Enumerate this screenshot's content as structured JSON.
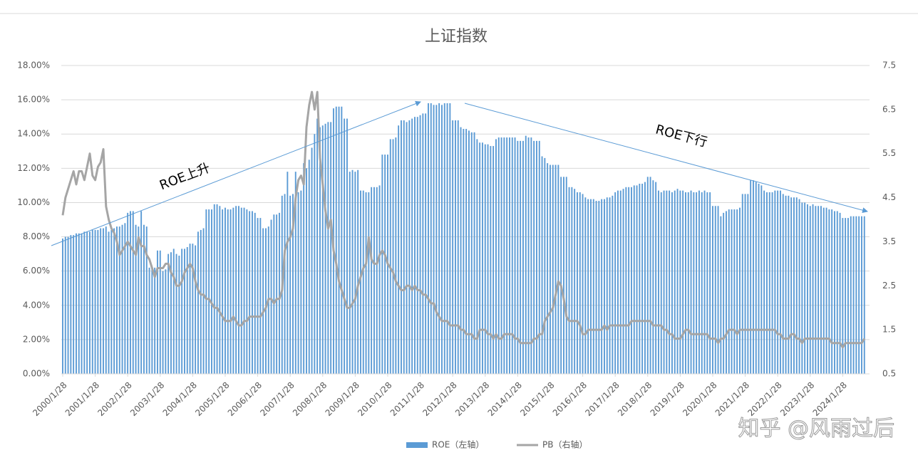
{
  "chart_data": {
    "type": "bar",
    "title": "上证指数",
    "categories": [
      "2000/1/28",
      null,
      null,
      null,
      null,
      null,
      null,
      null,
      null,
      null,
      null,
      null,
      "2001/1/28",
      null,
      null,
      null,
      null,
      null,
      null,
      null,
      null,
      null,
      null,
      null,
      "2002/1/28",
      null,
      null,
      null,
      null,
      null,
      null,
      null,
      null,
      null,
      null,
      null,
      "2003/1/28",
      null,
      null,
      null,
      null,
      null,
      null,
      null,
      null,
      null,
      null,
      null,
      "2004/1/28",
      null,
      null,
      null,
      null,
      null,
      null,
      null,
      null,
      null,
      null,
      null,
      "2005/1/28",
      null,
      null,
      null,
      null,
      null,
      null,
      null,
      null,
      null,
      null,
      null,
      "2006/1/28",
      null,
      null,
      null,
      null,
      null,
      null,
      null,
      null,
      null,
      null,
      null,
      "2007/1/28",
      null,
      null,
      null,
      null,
      null,
      null,
      null,
      null,
      null,
      null,
      null,
      "2008/1/28",
      null,
      null,
      null,
      null,
      null,
      null,
      null,
      null,
      null,
      null,
      null,
      "2009/1/28",
      null,
      null,
      null,
      null,
      null,
      null,
      null,
      null,
      null,
      null,
      null,
      "2010/1/28",
      null,
      null,
      null,
      null,
      null,
      null,
      null,
      null,
      null,
      null,
      null,
      "2011/1/28",
      null,
      null,
      null,
      null,
      null,
      null,
      null,
      null,
      null,
      null,
      null,
      "2012/1/28",
      null,
      null,
      null,
      null,
      null,
      null,
      null,
      null,
      null,
      null,
      null,
      "2013/1/28",
      null,
      null,
      null,
      null,
      null,
      null,
      null,
      null,
      null,
      null,
      null,
      "2014/1/28",
      null,
      null,
      null,
      null,
      null,
      null,
      null,
      null,
      null,
      null,
      null,
      "2015/1/28",
      null,
      null,
      null,
      null,
      null,
      null,
      null,
      null,
      null,
      null,
      null,
      "2016/1/28",
      null,
      null,
      null,
      null,
      null,
      null,
      null,
      null,
      null,
      null,
      null,
      "2017/1/28",
      null,
      null,
      null,
      null,
      null,
      null,
      null,
      null,
      null,
      null,
      null,
      "2018/1/28",
      null,
      null,
      null,
      null,
      null,
      null,
      null,
      null,
      null,
      null,
      null,
      "2019/1/28",
      null,
      null,
      null,
      null,
      null,
      null,
      null,
      null,
      null,
      null,
      null,
      "2020/1/28",
      null,
      null,
      null,
      null,
      null,
      null,
      null,
      null,
      null,
      null,
      null,
      "2021/1/28",
      null,
      null,
      null,
      null,
      null,
      null,
      null,
      null,
      null,
      null,
      null,
      "2022/1/28",
      null,
      null,
      null,
      null,
      null,
      null,
      null,
      null,
      null,
      null,
      null,
      "2023/1/28",
      null,
      null,
      null,
      null,
      null,
      null,
      null,
      null,
      null,
      null,
      null,
      "2024/1/28",
      null,
      null,
      null,
      null,
      null,
      null,
      null,
      null
    ],
    "series": [
      {
        "name": "ROE（左轴）",
        "color": "#5b9bd5",
        "type": "bar",
        "values": [
          7.9,
          8.0,
          8.0,
          8.1,
          8.1,
          8.2,
          8.2,
          8.2,
          8.3,
          8.3,
          8.3,
          8.4,
          8.4,
          8.4,
          8.5,
          8.5,
          8.6,
          8.3,
          8.4,
          8.5,
          8.6,
          8.6,
          8.7,
          8.8,
          9.4,
          9.5,
          9.5,
          8.7,
          8.6,
          9.5,
          8.7,
          8.6,
          6.2,
          6.2,
          6.2,
          7.2,
          7.2,
          6.0,
          6.1,
          7.0,
          7.1,
          7.3,
          7.0,
          6.9,
          7.3,
          7.3,
          7.4,
          7.6,
          7.6,
          7.5,
          8.3,
          8.4,
          8.5,
          9.6,
          9.6,
          9.6,
          9.9,
          9.9,
          9.8,
          9.6,
          9.7,
          9.6,
          9.6,
          9.7,
          9.8,
          9.8,
          9.7,
          9.7,
          9.6,
          9.5,
          9.5,
          9.4,
          9.1,
          9.1,
          8.5,
          8.5,
          8.6,
          9.0,
          9.3,
          9.3,
          9.4,
          10.4,
          10.5,
          11.8,
          10.4,
          10.5,
          11.8,
          10.6,
          10.7,
          12.3,
          12.0,
          12.5,
          13.2,
          14.0,
          14.9,
          14.4,
          14.5,
          14.6,
          14.7,
          14.7,
          15.5,
          15.6,
          15.6,
          15.6,
          14.9,
          14.9,
          11.8,
          11.9,
          11.8,
          11.9,
          10.7,
          10.7,
          10.6,
          10.6,
          10.9,
          10.9,
          10.9,
          11.0,
          12.8,
          12.8,
          12.8,
          13.7,
          13.7,
          13.8,
          14.5,
          14.8,
          14.8,
          14.7,
          14.8,
          14.9,
          15.0,
          15.0,
          15.1,
          15.2,
          15.2,
          15.8,
          15.8,
          15.7,
          15.7,
          15.8,
          15.7,
          15.8,
          15.8,
          15.8,
          14.8,
          14.8,
          14.8,
          14.4,
          14.3,
          14.3,
          14.2,
          14.1,
          14.1,
          13.7,
          13.5,
          13.5,
          13.4,
          13.4,
          13.3,
          13.3,
          13.7,
          13.8,
          13.8,
          13.8,
          13.8,
          13.8,
          13.8,
          13.8,
          13.6,
          13.6,
          13.6,
          13.9,
          13.8,
          13.8,
          13.6,
          13.6,
          13.6,
          12.7,
          12.6,
          12.3,
          12.2,
          12.2,
          12.2,
          12.2,
          11.5,
          11.5,
          11.5,
          10.9,
          10.9,
          10.8,
          10.6,
          10.6,
          10.5,
          10.3,
          10.2,
          10.2,
          10.2,
          10.1,
          10.1,
          10.2,
          10.2,
          10.3,
          10.3,
          10.4,
          10.6,
          10.7,
          10.7,
          10.8,
          10.9,
          10.9,
          10.9,
          11.0,
          11.0,
          11.1,
          11.1,
          11.2,
          11.5,
          11.5,
          11.3,
          11.2,
          10.7,
          10.6,
          10.7,
          10.7,
          10.7,
          10.6,
          10.7,
          10.8,
          10.7,
          10.7,
          10.6,
          10.6,
          10.7,
          10.6,
          10.6,
          10.7,
          10.6,
          10.7,
          10.6,
          10.6,
          9.8,
          9.8,
          9.8,
          9.2,
          9.4,
          9.5,
          9.6,
          9.6,
          9.6,
          9.6,
          9.7,
          10.5,
          10.5,
          10.5,
          11.3,
          11.3,
          11.2,
          11.1,
          11.0,
          10.7,
          10.6,
          10.6,
          10.6,
          10.7,
          10.7,
          10.7,
          10.5,
          10.4,
          10.4,
          10.3,
          10.3,
          10.3,
          10.2,
          10.0,
          10.0,
          9.9,
          9.8,
          9.9,
          9.8,
          9.8,
          9.8,
          9.7,
          9.7,
          9.6,
          9.6,
          9.5,
          9.5,
          9.4,
          9.1,
          9.1,
          9.1,
          9.2,
          9.2,
          9.2,
          9.2,
          9.2,
          9.2
        ]
      },
      {
        "name": "PB（右轴）",
        "color": "#a5a5a5",
        "type": "line",
        "axis": "y2",
        "values": [
          4.1,
          4.5,
          4.7,
          4.9,
          5.1,
          4.8,
          5.1,
          5.1,
          4.9,
          5.2,
          5.5,
          5.0,
          4.9,
          5.2,
          5.3,
          5.6,
          4.3,
          4.0,
          3.8,
          3.7,
          3.5,
          3.2,
          3.3,
          3.4,
          3.5,
          3.4,
          3.3,
          3.2,
          3.6,
          3.4,
          3.4,
          3.2,
          3.1,
          2.9,
          2.7,
          2.9,
          2.9,
          2.9,
          3.0,
          3.0,
          2.8,
          2.7,
          2.5,
          2.5,
          2.6,
          2.8,
          2.9,
          3.0,
          2.9,
          2.6,
          2.4,
          2.3,
          2.3,
          2.2,
          2.2,
          2.1,
          2.0,
          2.0,
          1.9,
          1.8,
          1.7,
          1.7,
          1.7,
          1.8,
          1.7,
          1.6,
          1.6,
          1.7,
          1.7,
          1.8,
          1.8,
          1.8,
          1.8,
          1.8,
          1.9,
          2.0,
          2.2,
          2.2,
          2.1,
          2.2,
          2.2,
          2.4,
          3.3,
          3.5,
          3.6,
          3.8,
          4.5,
          4.9,
          5.0,
          4.8,
          6.1,
          6.6,
          6.9,
          6.5,
          6.9,
          5.4,
          4.8,
          4.2,
          3.8,
          4.0,
          3.3,
          3.0,
          2.6,
          2.4,
          2.2,
          2.0,
          2.0,
          2.1,
          2.2,
          2.5,
          2.7,
          2.9,
          3.0,
          3.6,
          3.1,
          3.0,
          3.0,
          3.2,
          3.3,
          3.2,
          3.0,
          2.9,
          2.8,
          2.6,
          2.5,
          2.4,
          2.4,
          2.5,
          2.5,
          2.4,
          2.5,
          2.4,
          2.4,
          2.3,
          2.3,
          2.2,
          2.1,
          2.1,
          1.9,
          1.8,
          1.7,
          1.7,
          1.7,
          1.6,
          1.6,
          1.6,
          1.6,
          1.5,
          1.5,
          1.4,
          1.4,
          1.4,
          1.3,
          1.3,
          1.5,
          1.5,
          1.5,
          1.4,
          1.4,
          1.3,
          1.4,
          1.3,
          1.3,
          1.4,
          1.4,
          1.4,
          1.4,
          1.3,
          1.3,
          1.2,
          1.2,
          1.2,
          1.2,
          1.2,
          1.3,
          1.3,
          1.4,
          1.4,
          1.7,
          1.8,
          1.9,
          2.0,
          2.3,
          2.6,
          2.5,
          2.2,
          1.8,
          1.7,
          1.7,
          1.7,
          1.7,
          1.6,
          1.4,
          1.4,
          1.5,
          1.5,
          1.5,
          1.5,
          1.5,
          1.5,
          1.6,
          1.5,
          1.6,
          1.6,
          1.6,
          1.6,
          1.6,
          1.6,
          1.6,
          1.6,
          1.7,
          1.7,
          1.7,
          1.7,
          1.7,
          1.7,
          1.7,
          1.7,
          1.6,
          1.6,
          1.6,
          1.6,
          1.5,
          1.5,
          1.4,
          1.4,
          1.3,
          1.3,
          1.3,
          1.4,
          1.5,
          1.5,
          1.4,
          1.4,
          1.4,
          1.4,
          1.4,
          1.4,
          1.4,
          1.3,
          1.3,
          1.3,
          1.2,
          1.3,
          1.3,
          1.4,
          1.5,
          1.5,
          1.5,
          1.4,
          1.5,
          1.5,
          1.5,
          1.5,
          1.5,
          1.5,
          1.5,
          1.5,
          1.5,
          1.5,
          1.5,
          1.5,
          1.5,
          1.5,
          1.4,
          1.4,
          1.3,
          1.3,
          1.3,
          1.4,
          1.4,
          1.3,
          1.3,
          1.2,
          1.3,
          1.3,
          1.3,
          1.3,
          1.3,
          1.3,
          1.3,
          1.3,
          1.3,
          1.3,
          1.2,
          1.2,
          1.2,
          1.2,
          1.1,
          1.2,
          1.2,
          1.2,
          1.2,
          1.2,
          1.2,
          1.2,
          1.3
        ]
      }
    ],
    "ylim": [
      0,
      18
    ],
    "yticks": [
      {
        "value": 0,
        "label": "0.00%"
      },
      {
        "value": 2,
        "label": "2.00%"
      },
      {
        "value": 4,
        "label": "4.00%"
      },
      {
        "value": 6,
        "label": "6.00%"
      },
      {
        "value": 8,
        "label": "8.00%"
      },
      {
        "value": 10,
        "label": "10.00%"
      },
      {
        "value": 12,
        "label": "12.00%"
      },
      {
        "value": 14,
        "label": "14.00%"
      },
      {
        "value": 16,
        "label": "16.00%"
      },
      {
        "value": 18,
        "label": "18.00%"
      }
    ],
    "y2lim": [
      0.5,
      7.5
    ],
    "y2ticks": [
      0.5,
      1.5,
      2.5,
      3.5,
      4.5,
      5.5,
      6.5,
      7.5
    ],
    "grid": true,
    "legend": "bottom",
    "annotations": [
      "ROE上升",
      "ROE下行"
    ],
    "watermark": "知乎 @风雨过后"
  }
}
